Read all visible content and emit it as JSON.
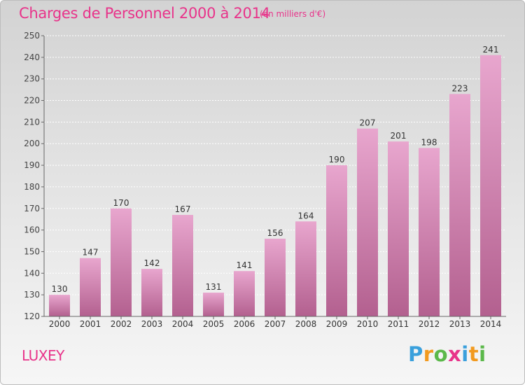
{
  "title": "Charges de Personnel 2000 à 2014",
  "subtitle": "(en milliers d'€)",
  "commune": "LUXEY",
  "brand": {
    "text": "Proxiti",
    "colors": [
      "#3aa0dc",
      "#f29a1f",
      "#5bb84a",
      "#e8338a",
      "#3aa0dc",
      "#f29a1f",
      "#5bb84a"
    ]
  },
  "colors": {
    "title": "#e8338a",
    "bar_top": "#e8a6ce",
    "bar_bottom": "#b3608f"
  },
  "chart_data": {
    "type": "bar",
    "categories": [
      "2000",
      "2001",
      "2002",
      "2003",
      "2004",
      "2005",
      "2006",
      "2007",
      "2008",
      "2009",
      "2010",
      "2011",
      "2012",
      "2013",
      "2014"
    ],
    "values": [
      130,
      147,
      170,
      142,
      167,
      131,
      141,
      156,
      164,
      190,
      207,
      201,
      198,
      223,
      241
    ],
    "ylim": [
      120,
      250
    ],
    "yticks": [
      120,
      130,
      140,
      150,
      160,
      170,
      180,
      190,
      200,
      210,
      220,
      230,
      240,
      250
    ],
    "grid": true,
    "data_labels": true
  }
}
